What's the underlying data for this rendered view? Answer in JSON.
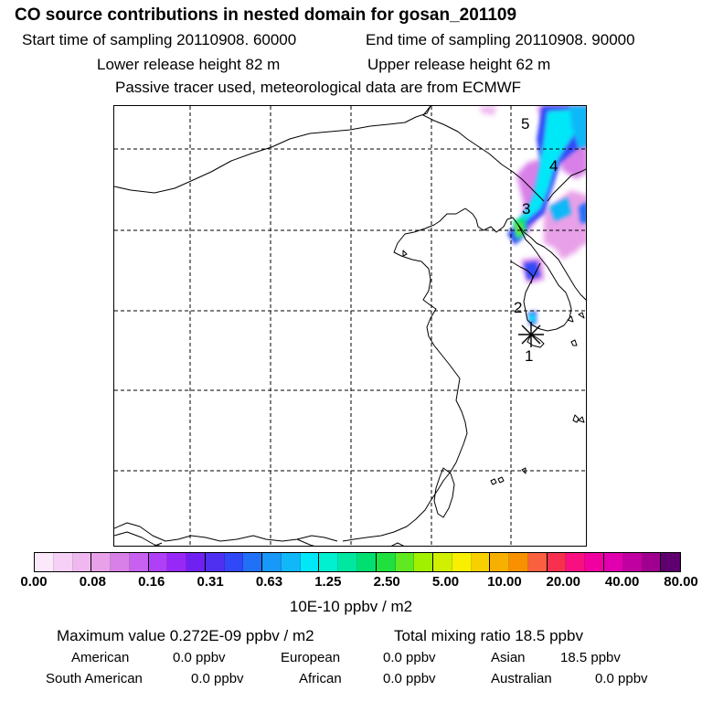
{
  "header": {
    "title": "CO  source contributions in nested domain for gosan_201109",
    "start_time": "Start time of sampling 20110908. 60000",
    "end_time": "End time of sampling 20110908. 90000",
    "lower_release": "Lower release height   82 m",
    "upper_release": "Upper release height   62 m",
    "note": "Passive tracer used, meteorological data are from ECMWF"
  },
  "map": {
    "receptor_marker": "gosan-receptor",
    "trajectory_labels": [
      "1",
      "2",
      "3",
      "4",
      "5"
    ],
    "line_color": "#000000",
    "grid_style": "dashed"
  },
  "colorbar": {
    "colors": [
      "#fbe8fb",
      "#f6d0f6",
      "#f0b8f0",
      "#e8a0e8",
      "#d880e8",
      "#c860f0",
      "#b040f8",
      "#9828f8",
      "#7020f0",
      "#5030f0",
      "#3048f8",
      "#2070f8",
      "#1898f8",
      "#10b8f8",
      "#00e8f8",
      "#00f0d0",
      "#00e8a0",
      "#00e070",
      "#20e040",
      "#60e820",
      "#a0f000",
      "#d0f000",
      "#f8f000",
      "#f8d000",
      "#f8b000",
      "#f89000",
      "#f86040",
      "#f83050",
      "#f81080",
      "#f000a0",
      "#e000b0",
      "#c000a0",
      "#a00090",
      "#600070"
    ],
    "tick_labels": [
      "0.00",
      "0.08",
      "0.16",
      "0.31",
      "0.63",
      "1.25",
      "2.50",
      "5.00",
      "10.00",
      "20.00",
      "40.00",
      "80.00"
    ],
    "units": "10E-10 ppbv / m2"
  },
  "summary": {
    "max_value": "Maximum value  0.272E-09 ppbv / m2",
    "total_mixing": "Total mixing ratio       18.5 ppbv",
    "american_label": "American",
    "american_value": "0.0 ppbv",
    "european_label": "European",
    "european_value": "0.0 ppbv",
    "asian_label": "Asian",
    "asian_value": "18.5 ppbv",
    "south_american_label": "South American",
    "south_american_value": "0.0 ppbv",
    "african_label": "African",
    "african_value": "0.0 ppbv",
    "australian_label": "Australian",
    "australian_value": "0.0 ppbv"
  }
}
